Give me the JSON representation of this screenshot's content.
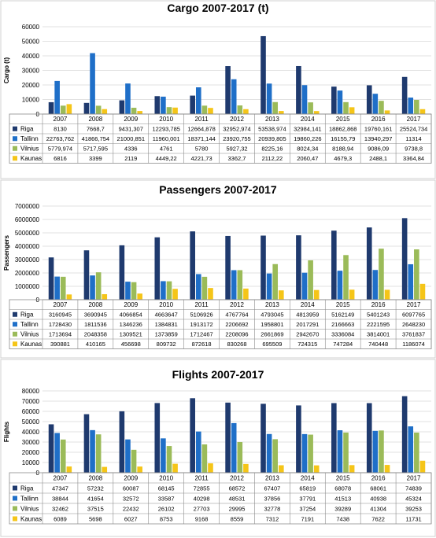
{
  "colors": {
    "Riga": "#1f3a6e",
    "Tallinn": "#1f6fc8",
    "Vilnius": "#9bbb59",
    "Kaunas": "#f5c518"
  },
  "chart_data": [
    {
      "type": "bar",
      "title": "Cargo 2007-2017 (t)",
      "ylabel": "Cargo (t)",
      "ylim": [
        0,
        60000
      ],
      "yticks": [
        "0",
        "10000",
        "20000",
        "30000",
        "40000",
        "50000",
        "60000"
      ],
      "grid": true,
      "legend": "data-table",
      "categories": [
        "2007",
        "2008",
        "2009",
        "2010",
        "2011",
        "2012",
        "2013",
        "2014",
        "2015",
        "2016",
        "2017"
      ],
      "series": [
        {
          "name": "Riga",
          "values": [
            8130,
            7668.7,
            9431.307,
            12293.785,
            12664.878,
            32952.974,
            53538.974,
            32984.141,
            18862.868,
            19760.161,
            25524.734
          ],
          "labels": [
            "8130",
            "7668,7",
            "9431,307",
            "12293,785",
            "12664,878",
            "32952,974",
            "53538,974",
            "32984,141",
            "18862,868",
            "19760,161",
            "25524,734"
          ]
        },
        {
          "name": "Tallinn",
          "values": [
            22763.762,
            41866.754,
            21000.851,
            11960.001,
            18371.144,
            23920.755,
            20939.805,
            19860.226,
            16155.79,
            13940.297,
            11314
          ],
          "labels": [
            "22763,762",
            "41866,754",
            "21000,851",
            "11960,001",
            "18371,144",
            "23920,755",
            "20939,805",
            "19860,226",
            "16155,79",
            "13940,297",
            "11314"
          ]
        },
        {
          "name": "Vilnius",
          "values": [
            5779.974,
            5717.595,
            4336,
            4761,
            5780,
            5927.32,
            8225.16,
            8024.34,
            8188.94,
            9086.09,
            9738.8
          ],
          "labels": [
            "5779,974",
            "5717,595",
            "4336",
            "4761",
            "5780",
            "5927,32",
            "8225,16",
            "8024,34",
            "8188,94",
            "9086,09",
            "9738,8"
          ]
        },
        {
          "name": "Kaunas",
          "values": [
            6816,
            3399,
            2119,
            4449.22,
            4221.73,
            3362.7,
            2112.22,
            2060.47,
            4679.3,
            2488.1,
            3364.84
          ],
          "labels": [
            "6816",
            "3399",
            "2119",
            "4449,22",
            "4221,73",
            "3362,7",
            "2112,22",
            "2060,47",
            "4679,3",
            "2488,1",
            "3364,84"
          ]
        }
      ]
    },
    {
      "type": "bar",
      "title": "Passengers 2007-2017",
      "ylabel": "Passengers",
      "ylim": [
        0,
        7000000
      ],
      "yticks": [
        "0",
        "1000000",
        "2000000",
        "3000000",
        "4000000",
        "5000000",
        "6000000",
        "7000000"
      ],
      "grid": true,
      "legend": "data-table",
      "categories": [
        "2007",
        "2008",
        "2009",
        "2010",
        "2011",
        "2012",
        "2013",
        "2014",
        "2015",
        "2016",
        "2017"
      ],
      "series": [
        {
          "name": "Riga",
          "values": [
            3160945,
            3690945,
            4066854,
            4663647,
            5106926,
            4767764,
            4793045,
            4813959,
            5162149,
            5401243,
            6097765
          ],
          "labels": [
            "3160945",
            "3690945",
            "4066854",
            "4663647",
            "5106926",
            "4767764",
            "4793045",
            "4813959",
            "5162149",
            "5401243",
            "6097765"
          ]
        },
        {
          "name": "Tallinn",
          "values": [
            1728430,
            1811536,
            1346236,
            1384831,
            1913172,
            2206692,
            1958801,
            2017291,
            2166663,
            2221595,
            2648230
          ],
          "labels": [
            "1728430",
            "1811536",
            "1346236",
            "1384831",
            "1913172",
            "2206692",
            "1958801",
            "2017291",
            "2166663",
            "2221595",
            "2648230"
          ]
        },
        {
          "name": "Vilnius",
          "values": [
            1713694,
            2048358,
            1309521,
            1373859,
            1712467,
            2208096,
            2661869,
            2942670,
            3336084,
            3814001,
            3761837
          ],
          "labels": [
            "1713694",
            "2048358",
            "1309521",
            "1373859",
            "1712467",
            "2208096",
            "2661869",
            "2942670",
            "3336084",
            "3814001",
            "3761837"
          ]
        },
        {
          "name": "Kaunas",
          "values": [
            390881,
            410165,
            456698,
            809732,
            872618,
            830268,
            695509,
            724315,
            747284,
            740448,
            1186074
          ],
          "labels": [
            "390881",
            "410165",
            "456698",
            "809732",
            "872618",
            "830268",
            "695509",
            "724315",
            "747284",
            "740448",
            "1186074"
          ]
        }
      ]
    },
    {
      "type": "bar",
      "title": "Flights 2007-2017",
      "ylabel": "Flights",
      "ylim": [
        0,
        80000
      ],
      "yticks": [
        "0",
        "10000",
        "20000",
        "30000",
        "40000",
        "50000",
        "60000",
        "70000",
        "80000"
      ],
      "grid": true,
      "legend": "data-table",
      "categories": [
        "2007",
        "2008",
        "2009",
        "2010",
        "2011",
        "2012",
        "2013",
        "2014",
        "2015",
        "2016",
        "2017"
      ],
      "series": [
        {
          "name": "Riga",
          "values": [
            47347,
            57232,
            60087,
            68145,
            72855,
            68572,
            67407,
            65819,
            68078,
            68061,
            74839
          ],
          "labels": [
            "47347",
            "57232",
            "60087",
            "68145",
            "72855",
            "68572",
            "67407",
            "65819",
            "68078",
            "68061",
            "74839"
          ]
        },
        {
          "name": "Tallinn",
          "values": [
            38844,
            41654,
            32572,
            33587,
            40298,
            48531,
            37856,
            37791,
            41513,
            40938,
            45324
          ],
          "labels": [
            "38844",
            "41654",
            "32572",
            "33587",
            "40298",
            "48531",
            "37856",
            "37791",
            "41513",
            "40938",
            "45324"
          ]
        },
        {
          "name": "Vilnius",
          "values": [
            32462,
            37515,
            22432,
            26102,
            27703,
            29995,
            32778,
            37254,
            39289,
            41304,
            39253
          ],
          "labels": [
            "32462",
            "37515",
            "22432",
            "26102",
            "27703",
            "29995",
            "32778",
            "37254",
            "39289",
            "41304",
            "39253"
          ]
        },
        {
          "name": "Kaunas",
          "values": [
            6089,
            5698,
            6027,
            8753,
            9168,
            8559,
            7312,
            7191,
            7438,
            7622,
            11731
          ],
          "labels": [
            "6089",
            "5698",
            "6027",
            "8753",
            "9168",
            "8559",
            "7312",
            "7191",
            "7438",
            "7622",
            "11731"
          ]
        }
      ]
    }
  ]
}
